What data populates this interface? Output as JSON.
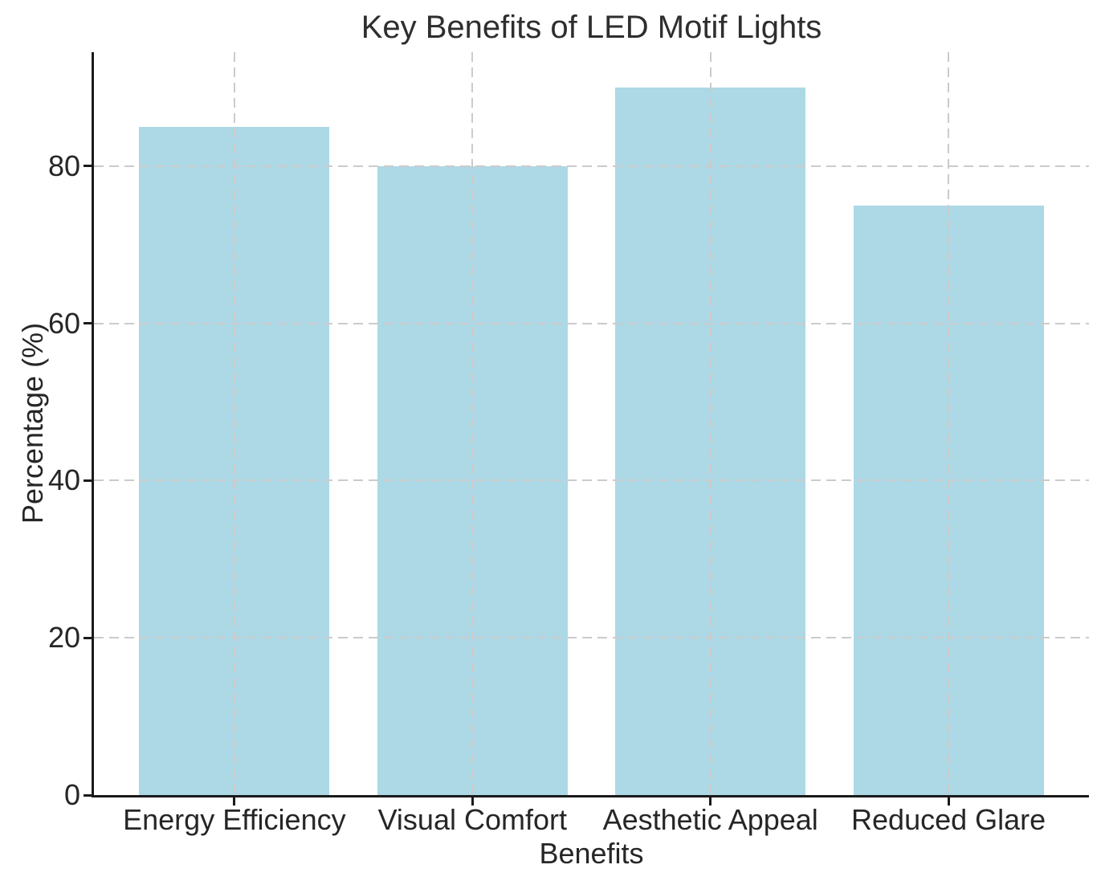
{
  "chart_data": {
    "type": "bar",
    "title": "Key Benefits of LED Motif Lights",
    "xlabel": "Benefits",
    "ylabel": "Percentage (%)",
    "categories": [
      "Energy Efficiency",
      "Visual Comfort",
      "Aesthetic Appeal",
      "Reduced Glare"
    ],
    "values": [
      85,
      80,
      90,
      75
    ],
    "yticks": [
      0,
      20,
      40,
      60,
      80
    ],
    "ylim": [
      0,
      94.5
    ],
    "xlim": [
      -0.59,
      3.59
    ],
    "bar_width": 0.8,
    "grid": true,
    "grid_style": "dashed",
    "grid_above_bars": true,
    "legend": false,
    "colors": {
      "bar_fill": "#ADD8E6",
      "grid": "#cbcbcb",
      "axis": "#1a1a1a",
      "text": "#262626"
    }
  }
}
